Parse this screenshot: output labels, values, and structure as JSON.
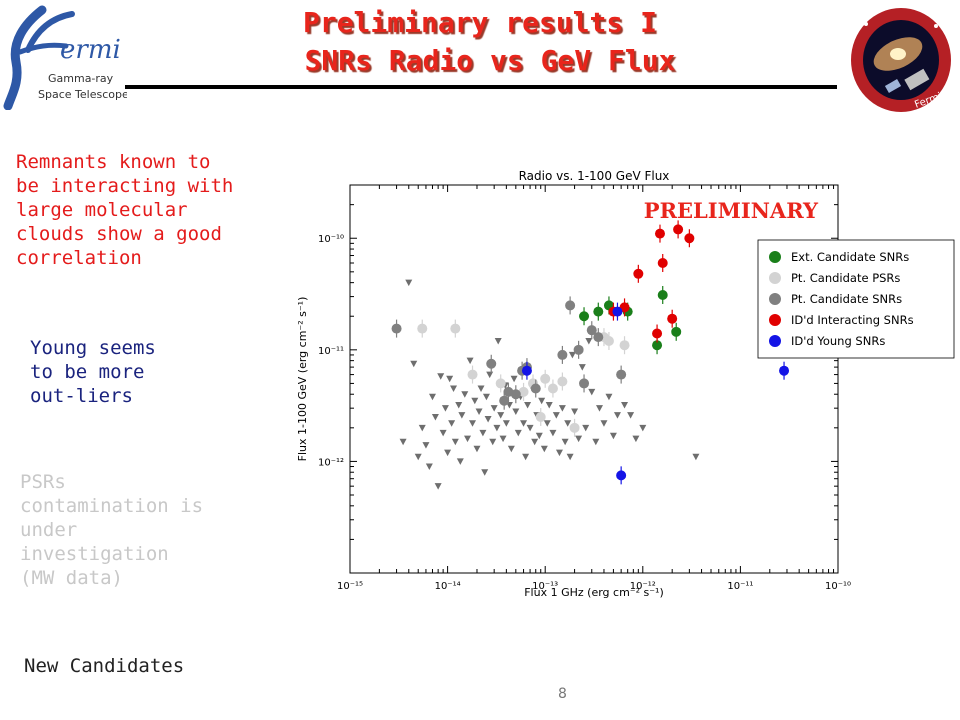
{
  "slide": {
    "title_line1": "Preliminary results I",
    "title_line2": "SNRs Radio vs GeV Flux",
    "page_number": "8",
    "notes": {
      "molecular": "Remnants known to be interacting with large molecular clouds show a good correlation",
      "young": "Young seems to be more out-liers",
      "psrs": "PSRs contamination is under investigation (MW data)",
      "candidates": "New Candidates"
    },
    "logo": {
      "word": "ermi",
      "subtitle1": "Gamma-ray",
      "subtitle2": "Space Telescope"
    },
    "mission_patch": {
      "text": "Fermi"
    }
  },
  "chart_data": {
    "type": "scatter",
    "title": "Radio vs. 1-100 GeV Flux",
    "watermark": "PRELIMINARY",
    "xlabel": "Flux 1 GHz (erg cm⁻² s⁻¹)",
    "ylabel": "Flux 1-100 GeV (erg cm⁻² s⁻¹)",
    "xscale": "log",
    "yscale": "log",
    "xlim": [
      1e-15,
      1e-10
    ],
    "ylim": [
      1e-13,
      3e-10
    ],
    "xticks": [
      "10⁻¹⁵",
      "10⁻¹⁴",
      "10⁻¹³",
      "10⁻¹²",
      "10⁻¹¹",
      "10⁻¹⁰"
    ],
    "yticks": [
      "10⁻¹²",
      "10⁻¹¹",
      "10⁻¹⁰"
    ],
    "legend_position": "upper right",
    "colors": {
      "ext_snr": "#1a7f1a",
      "pt_psr": "#d3d3d3",
      "pt_snr": "#808080",
      "interacting": "#e00000",
      "young": "#1414e6",
      "upper_limit": "#6e6e6e"
    },
    "series": [
      {
        "name": "Ext. Candidate SNRs",
        "color_key": "ext_snr",
        "marker": "circle",
        "points": [
          [
            2.5e-13,
            2e-11
          ],
          [
            3.5e-13,
            2.2e-11
          ],
          [
            4.5e-13,
            2.5e-11
          ],
          [
            7e-13,
            2.2e-11
          ],
          [
            1.4e-12,
            1.1e-11
          ],
          [
            1.6e-12,
            3.1e-11
          ],
          [
            2.2e-12,
            1.45e-11
          ]
        ]
      },
      {
        "name": "Pt. Candidate PSRs",
        "color_key": "pt_psr",
        "marker": "circle",
        "points": [
          [
            5.5e-15,
            1.55e-11
          ],
          [
            1.2e-14,
            1.55e-11
          ],
          [
            1.8e-14,
            6e-12
          ],
          [
            3.5e-14,
            5e-12
          ],
          [
            6e-14,
            4.2e-12
          ],
          [
            7.5e-14,
            5e-12
          ],
          [
            1e-13,
            5.5e-12
          ],
          [
            1.2e-13,
            4.5e-12
          ],
          [
            1.5e-13,
            5.2e-12
          ],
          [
            2e-13,
            2e-12
          ],
          [
            4e-13,
            1.3e-11
          ],
          [
            4.5e-13,
            1.2e-11
          ],
          [
            6.5e-13,
            1.1e-11
          ],
          [
            9e-14,
            2.5e-12
          ]
        ]
      },
      {
        "name": "Pt. Candidate SNRs",
        "color_key": "pt_snr",
        "marker": "circle",
        "points": [
          [
            3e-15,
            1.55e-11
          ],
          [
            2.8e-14,
            7.5e-12
          ],
          [
            3.8e-14,
            3.5e-12
          ],
          [
            4.2e-14,
            4.2e-12
          ],
          [
            5e-14,
            4e-12
          ],
          [
            5.8e-14,
            6.5e-12
          ],
          [
            6.5e-14,
            7e-12
          ],
          [
            8e-14,
            4.5e-12
          ],
          [
            1.5e-13,
            9e-12
          ],
          [
            1.8e-13,
            2.5e-11
          ],
          [
            2.2e-13,
            1e-11
          ],
          [
            2.5e-13,
            5e-12
          ],
          [
            3e-13,
            1.5e-11
          ],
          [
            3.5e-13,
            1.3e-11
          ],
          [
            6e-13,
            6e-12
          ]
        ]
      },
      {
        "name": "ID'd Interacting SNRs",
        "color_key": "interacting",
        "marker": "circle",
        "points": [
          [
            5e-13,
            2.2e-11
          ],
          [
            6.5e-13,
            2.4e-11
          ],
          [
            9e-13,
            4.8e-11
          ],
          [
            1.4e-12,
            1.4e-11
          ],
          [
            1.5e-12,
            1.1e-10
          ],
          [
            1.6e-12,
            6e-11
          ],
          [
            2e-12,
            1.9e-11
          ],
          [
            2.3e-12,
            1.2e-10
          ],
          [
            3e-12,
            1e-10
          ]
        ]
      },
      {
        "name": "ID'd Young SNRs",
        "color_key": "young",
        "marker": "circle",
        "points": [
          [
            6.5e-14,
            6.5e-12
          ],
          [
            5.5e-13,
            2.2e-11
          ],
          [
            6e-13,
            7.5e-13
          ],
          [
            2.8e-11,
            6.5e-12
          ]
        ]
      }
    ],
    "upper_limits": [
      [
        3.5e-15,
        1.5e-12
      ],
      [
        4e-15,
        4e-11
      ],
      [
        4.5e-15,
        7.5e-12
      ],
      [
        5e-15,
        1.1e-12
      ],
      [
        5.5e-15,
        2e-12
      ],
      [
        6e-15,
        1.4e-12
      ],
      [
        6.5e-15,
        9e-13
      ],
      [
        7e-15,
        3.8e-12
      ],
      [
        7.5e-15,
        2.5e-12
      ],
      [
        8e-15,
        6e-13
      ],
      [
        8.5e-15,
        5.8e-12
      ],
      [
        9e-15,
        1.8e-12
      ],
      [
        9.5e-15,
        3e-12
      ],
      [
        1e-14,
        1.2e-12
      ],
      [
        1.05e-14,
        5.5e-12
      ],
      [
        1.1e-14,
        2.2e-12
      ],
      [
        1.15e-14,
        4.5e-12
      ],
      [
        1.2e-14,
        1.5e-12
      ],
      [
        1.3e-14,
        3.2e-12
      ],
      [
        1.35e-14,
        1e-12
      ],
      [
        1.4e-14,
        2.6e-12
      ],
      [
        1.5e-14,
        4e-12
      ],
      [
        1.6e-14,
        1.6e-12
      ],
      [
        1.7e-14,
        8e-12
      ],
      [
        1.8e-14,
        2.2e-12
      ],
      [
        1.9e-14,
        3.5e-12
      ],
      [
        2e-14,
        1.3e-12
      ],
      [
        2.1e-14,
        2.8e-12
      ],
      [
        2.2e-14,
        4.5e-12
      ],
      [
        2.3e-14,
        1.8e-12
      ],
      [
        2.4e-14,
        8e-13
      ],
      [
        2.5e-14,
        3.8e-12
      ],
      [
        2.6e-14,
        2.4e-12
      ],
      [
        2.7e-14,
        6e-12
      ],
      [
        2.9e-14,
        1.5e-12
      ],
      [
        3e-14,
        3e-12
      ],
      [
        3.2e-14,
        2e-12
      ],
      [
        3.3e-14,
        1.2e-11
      ],
      [
        3.5e-14,
        2.6e-12
      ],
      [
        3.7e-14,
        1.6e-12
      ],
      [
        3.9e-14,
        4.8e-12
      ],
      [
        4e-14,
        2.2e-12
      ],
      [
        4.3e-14,
        3.2e-12
      ],
      [
        4.5e-14,
        1.3e-12
      ],
      [
        4.8e-14,
        5.5e-12
      ],
      [
        5e-14,
        2.8e-12
      ],
      [
        5.3e-14,
        1.8e-12
      ],
      [
        5.6e-14,
        3.8e-12
      ],
      [
        6e-14,
        2.2e-12
      ],
      [
        6.3e-14,
        1.1e-12
      ],
      [
        6.6e-14,
        3.2e-12
      ],
      [
        7e-14,
        2e-12
      ],
      [
        7.4e-14,
        4.5e-12
      ],
      [
        7.8e-14,
        1.5e-12
      ],
      [
        8.2e-14,
        2.6e-12
      ],
      [
        8.7e-14,
        1.7e-12
      ],
      [
        9.2e-14,
        3.5e-12
      ],
      [
        9.8e-14,
        1.3e-12
      ],
      [
        1.05e-13,
        2.2e-12
      ],
      [
        1.1e-13,
        3.2e-12
      ],
      [
        1.2e-13,
        1.8e-12
      ],
      [
        1.3e-13,
        2.6e-12
      ],
      [
        1.4e-13,
        1.2e-12
      ],
      [
        1.5e-13,
        3e-12
      ],
      [
        1.6e-13,
        1.5e-12
      ],
      [
        1.7e-13,
        2.2e-12
      ],
      [
        1.8e-13,
        1.1e-12
      ],
      [
        1.9e-13,
        9e-12
      ],
      [
        2e-13,
        2.8e-12
      ],
      [
        2.2e-13,
        1.6e-12
      ],
      [
        2.4e-13,
        7e-12
      ],
      [
        2.6e-13,
        2e-12
      ],
      [
        2.8e-13,
        1.2e-11
      ],
      [
        3e-13,
        4.2e-12
      ],
      [
        3.3e-13,
        1.5e-12
      ],
      [
        3.6e-13,
        3e-12
      ],
      [
        4e-13,
        2.2e-12
      ],
      [
        4.5e-13,
        3.8e-12
      ],
      [
        5e-13,
        1.7e-12
      ],
      [
        5.5e-13,
        2.6e-12
      ],
      [
        6.5e-13,
        3.2e-12
      ],
      [
        7.5e-13,
        2.6e-12
      ],
      [
        8.5e-13,
        1.6e-12
      ],
      [
        1e-12,
        2e-12
      ],
      [
        3.5e-12,
        1.1e-12
      ]
    ]
  }
}
